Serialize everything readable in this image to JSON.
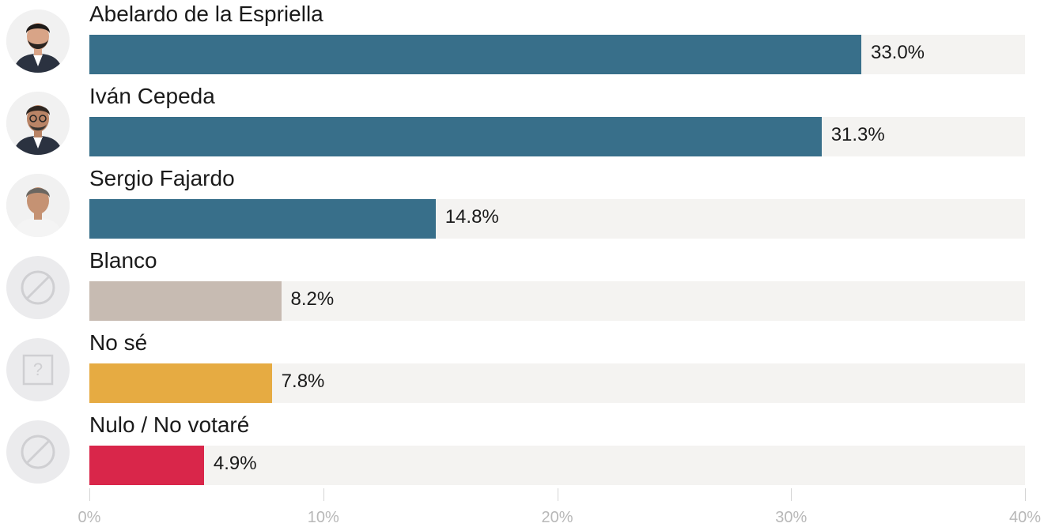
{
  "chart_data": {
    "type": "bar",
    "orientation": "horizontal",
    "xlim": [
      0,
      40
    ],
    "grid": false,
    "xticks": [
      {
        "value": 0,
        "label": "0%"
      },
      {
        "value": 10,
        "label": "10%"
      },
      {
        "value": 20,
        "label": "20%"
      },
      {
        "value": 30,
        "label": "30%"
      },
      {
        "value": 40,
        "label": "40%"
      }
    ],
    "bars": [
      {
        "label": "Abelardo de la Espriella",
        "value": 33.0,
        "value_label": "33.0%",
        "color": "#386f8a",
        "icon": "candidate-photo"
      },
      {
        "label": "Iván Cepeda",
        "value": 31.3,
        "value_label": "31.3%",
        "color": "#386f8a",
        "icon": "candidate-photo"
      },
      {
        "label": "Sergio Fajardo",
        "value": 14.8,
        "value_label": "14.8%",
        "color": "#386f8a",
        "icon": "candidate-photo"
      },
      {
        "label": "Blanco",
        "value": 8.2,
        "value_label": "8.2%",
        "color": "#c7bbb2",
        "icon": "prohibited-icon"
      },
      {
        "label": "No sé",
        "value": 7.8,
        "value_label": "7.8%",
        "color": "#e6ab42",
        "icon": "question-box-icon"
      },
      {
        "label": "Nulo / No votaré",
        "value": 4.9,
        "value_label": "4.9%",
        "color": "#d9264a",
        "icon": "prohibited-icon"
      }
    ]
  },
  "colors": {
    "track": "#f4f3f1",
    "icon_bg": "#ebebed",
    "icon_stroke": "#cfcfd2",
    "text": "#1a1a1a",
    "tick_text": "#b8b8b8"
  }
}
